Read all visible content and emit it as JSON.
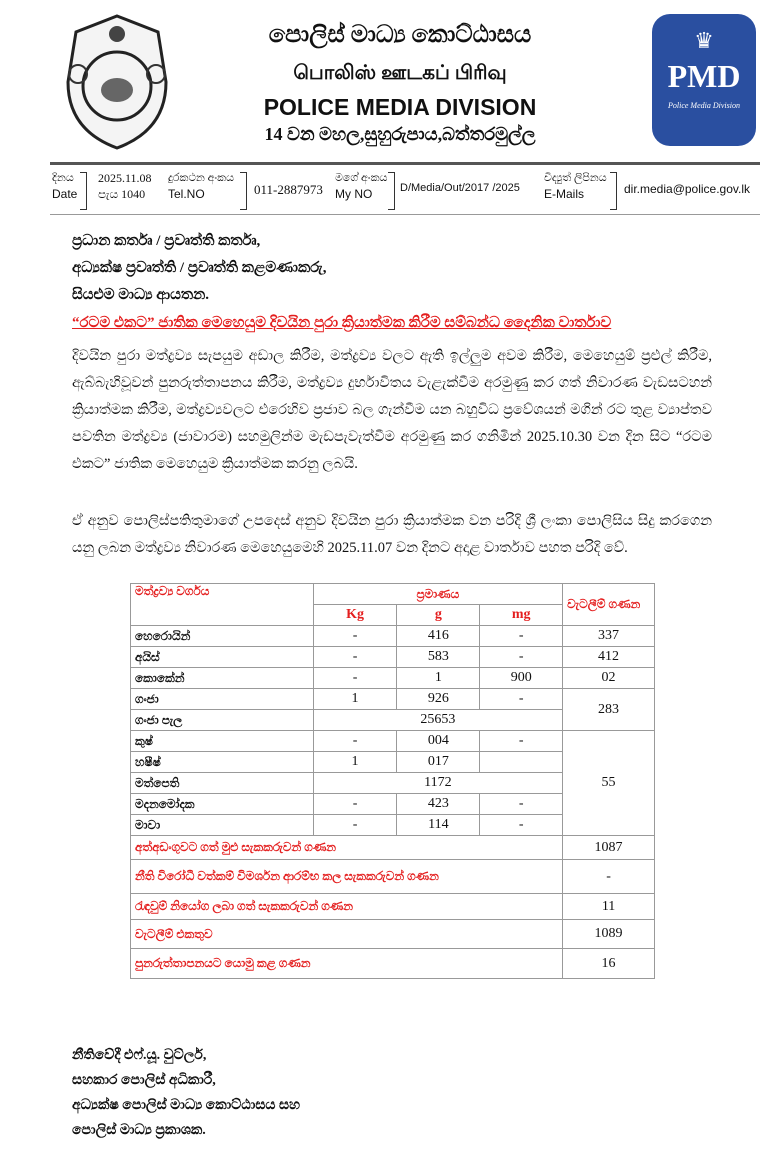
{
  "header": {
    "title_sinhala": "පොලිස් මාධ්‍ය කොට්ඨාසය",
    "title_tamil": "பொலிஸ் ஊடகப் பிரிவு",
    "title_english": "POLICE MEDIA DIVISION",
    "address": "14 වන මහල,සුහුරුපාය,බත්තරමුල්ල",
    "logo_right_text": "PMD",
    "logo_right_subtext": "Police Media Division",
    "brand_blue": "#2a4fa0"
  },
  "info": {
    "date_label_si": "දිනය",
    "date_label_en": "Date",
    "date_value": "2025.11.08",
    "time_value": "පැය 1040",
    "tel_label_si": "දුරකථන අංකය",
    "tel_label_en": "Tel.NO",
    "tel_value": "011-2887973",
    "myno_label_si": "මගේ අංකය",
    "myno_label_en": "My NO",
    "myno_value": "D/Media/Out/2017 /2025",
    "email_label_si": "විද්‍යුත් ලිපිනය",
    "email_label_en": "E-Mails",
    "email_value": "dir.media@police.gov.lk"
  },
  "addressees": [
    "ප්‍රධාන කර්තෘ / ප්‍රවෘත්ති කර්තෘ,",
    "අධ්‍යක්ෂ ප්‍රවෘත්ති / ප්‍රවෘත්ති කළමණාකරු,",
    "සියළුම මාධ්‍ය ආයතන."
  ],
  "subject": "“රටම එකට” ජාතික මෙහෙයුම දිවයින පුරා ක්‍රියාත්මක කිරීම  සම්බන්ධ දෛනික වාර්තාව",
  "paragraphs": [
    "දිවයින පුරා මත්ද්‍රව්‍ය සැපයුම අඩාල කිරීම, මත්ද්‍රව්‍ය වලට ඇති ඉල්ලුම අවම කිරීම, මෙහෙයුම් ප්‍රළුල් කිරීම, ඇබ්බැහිවූවන් පුනරුත්තාපනය කිරීම, මත්ද්‍රව්‍ය දුර්භාවිතය වැළැක්වීම අරමුණු කර ගත් නිවාරණ වැඩසටහන් ක්‍රියාත්මක කිරීම, මත්ද්‍රව්‍යවලට එරෙහිව ප්‍රජාව බල ගැන්වීම යන බහුවිධ ප්‍රවේශයන් මගින් රට තුළ ව්‍යාප්තව පවතින මත්ද්‍රව්‍ය (ජාවාරම) සහමුලින්ම මැඩපැවැත්වීම අරමුණු කර ගනිමින් 2025.10.30 වන දින සිට “රටම එකට” ජාතික මෙහෙයුම ක්‍රියාත්මක කරනු ලබයි.",
    "ඒ අනුව පොලිස්පතිතුමාගේ උපදෙස් අනුව දිවයින පුරා ක්‍රියාත්මක වන පරිදි ශ්‍රී ලංකා පොලිසිය සිදු කරගෙන යනු ලබන මත්ද්‍රව්‍ය නිවාරණ මෙහෙයුමෙහි 2025.11.07 වන දිනට අදාළ වාර්තාව පහත පරිදි වේ."
  ],
  "table": {
    "headers": {
      "type": "මත්ද්‍රව්‍ය වර්ගය",
      "quantity": "ප්‍රමාණය",
      "kg": "Kg",
      "g": "g",
      "mg": "mg",
      "arrests": "වැටලීම් ගණන"
    },
    "rows": [
      {
        "name": "හෙරොයින්",
        "kg": "-",
        "g": "416",
        "mg": "-",
        "arrests": "337"
      },
      {
        "name": "අයිස්",
        "kg": "-",
        "g": "583",
        "mg": "-",
        "arrests": "412"
      },
      {
        "name": "කොකේන්",
        "kg": "-",
        "g": "1",
        "mg": "900",
        "arrests": "02"
      },
      {
        "name": "ගංජා",
        "kg": "1",
        "g": "926",
        "mg": "-",
        "arrests": "283"
      },
      {
        "name": "ගංජා පැල",
        "merged": "25653"
      },
      {
        "name": "කුෂ්",
        "kg": "-",
        "g": "004",
        "mg": "-",
        "arrests": "55"
      },
      {
        "name": "හෂීෂ්",
        "kg": "1",
        "g": "017",
        "mg": ""
      },
      {
        "name": "මත්පෙති",
        "merged": "1172"
      },
      {
        "name": "මදනමෝදක",
        "kg": "-",
        "g": "423",
        "mg": "-"
      },
      {
        "name": "මාවා",
        "kg": "-",
        "g": "114",
        "mg": "-"
      }
    ],
    "summary": [
      {
        "label": "අත්අඩංගුවට ගත් මුළු සැකකරුවන් ගණන",
        "value": "1087"
      },
      {
        "label": "නීති විරෝධී වත්කම් විමර්ශන ආරම්භ කල සැකකරුවන් ගණන",
        "value": "-"
      },
      {
        "label": "රැඳවුම් නියෝග ලබා ගත් සැකකරුවන් ගණන",
        "value": "11"
      },
      {
        "label": "වැටලීම් එකතුව",
        "value": "1089"
      },
      {
        "label": "පුනරුත්තාපනයට යොමු කළ ගණන",
        "value": "16"
      }
    ]
  },
  "signature": [
    "නීතිවේදී එෆ්.යූ. වුට්ලර්,",
    "සහකාර පොලිස් අධිකාරී,",
    "අධ්‍යක්ෂ පොලිස් මාධ්‍ය කොට්ඨාසය සහ",
    "පොලිස් මාධ්‍ය ප්‍රකාශක."
  ]
}
